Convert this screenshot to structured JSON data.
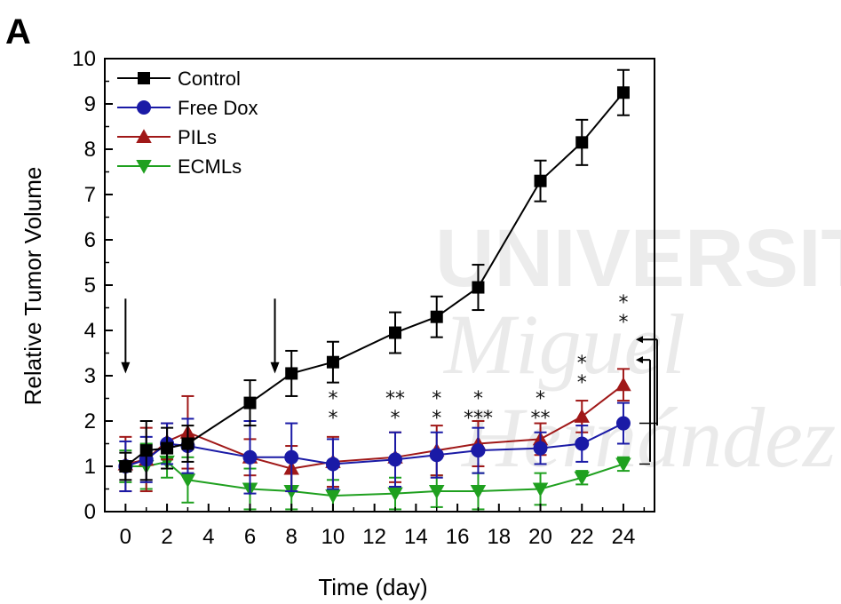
{
  "panel_label": "A",
  "watermark": {
    "line1": "UNIVERSITAS",
    "line2": "Miguel",
    "line3": "Hernández"
  },
  "chart_data": {
    "type": "line",
    "xlabel": "Time (day)",
    "ylabel": "Relative Tumor Volume",
    "xlim": [
      -1,
      25.5
    ],
    "ylim": [
      0,
      10
    ],
    "xticks": [
      0,
      2,
      4,
      6,
      8,
      10,
      12,
      14,
      16,
      18,
      20,
      22,
      24
    ],
    "yticks": [
      0,
      1,
      2,
      3,
      4,
      5,
      6,
      7,
      8,
      9,
      10
    ],
    "legend_position": "top-left",
    "series": [
      {
        "name": "Control",
        "color": "#000000",
        "marker": "square",
        "x": [
          0,
          1,
          2,
          3,
          6,
          8,
          10,
          13,
          15,
          17,
          20,
          22,
          24
        ],
        "y": [
          1.0,
          1.35,
          1.4,
          1.5,
          2.4,
          3.05,
          3.3,
          3.95,
          4.3,
          4.95,
          7.3,
          8.15,
          9.25
        ],
        "err": [
          0.3,
          0.65,
          0.45,
          0.4,
          0.5,
          0.5,
          0.45,
          0.45,
          0.45,
          0.5,
          0.45,
          0.5,
          0.5
        ]
      },
      {
        "name": "Free Dox",
        "color": "#1a1aa6",
        "marker": "circle",
        "x": [
          0,
          1,
          2,
          3,
          6,
          8,
          10,
          13,
          15,
          17,
          20,
          22,
          24
        ],
        "y": [
          1.0,
          1.15,
          1.5,
          1.45,
          1.2,
          1.2,
          1.05,
          1.15,
          1.25,
          1.35,
          1.4,
          1.5,
          1.95
        ],
        "err": [
          0.55,
          0.5,
          0.45,
          0.6,
          0.8,
          0.75,
          0.55,
          0.6,
          0.5,
          0.5,
          0.35,
          0.4,
          0.45
        ]
      },
      {
        "name": "PILs",
        "color": "#a01818",
        "marker": "triangle-up",
        "x": [
          0,
          1,
          2,
          3,
          6,
          8,
          10,
          13,
          15,
          17,
          20,
          22,
          24
        ],
        "y": [
          1.05,
          1.15,
          1.55,
          1.75,
          1.2,
          0.95,
          1.1,
          1.2,
          1.35,
          1.5,
          1.6,
          2.1,
          2.8
        ],
        "err": [
          0.6,
          0.7,
          0.4,
          0.8,
          0.4,
          0.5,
          0.55,
          0.55,
          0.55,
          0.5,
          0.35,
          0.35,
          0.35
        ]
      },
      {
        "name": "ECMLs",
        "color": "#1fa01f",
        "marker": "triangle-down",
        "x": [
          0,
          1,
          2,
          3,
          6,
          8,
          10,
          13,
          15,
          17,
          20,
          22,
          24
        ],
        "y": [
          1.0,
          1.0,
          1.1,
          0.7,
          0.5,
          0.45,
          0.35,
          0.4,
          0.45,
          0.45,
          0.5,
          0.75,
          1.05
        ],
        "err": [
          0.35,
          0.5,
          0.35,
          0.5,
          0.45,
          0.4,
          0.35,
          0.35,
          0.35,
          0.4,
          0.35,
          0.15,
          0.15
        ]
      }
    ],
    "annotations": {
      "arrows_x": [
        0,
        7.2
      ],
      "significance": [
        {
          "x": 10,
          "lines": [
            "*",
            "*"
          ]
        },
        {
          "x": 13,
          "lines": [
            "**",
            "*"
          ]
        },
        {
          "x": 15,
          "lines": [
            "*",
            "*"
          ]
        },
        {
          "x": 17,
          "lines": [
            "*",
            "***"
          ]
        },
        {
          "x": 20,
          "lines": [
            "*",
            "**"
          ]
        },
        {
          "x": 22,
          "lines": [
            "*",
            "*"
          ]
        },
        {
          "x": 24,
          "lines": [
            "*",
            "*"
          ]
        }
      ]
    }
  }
}
